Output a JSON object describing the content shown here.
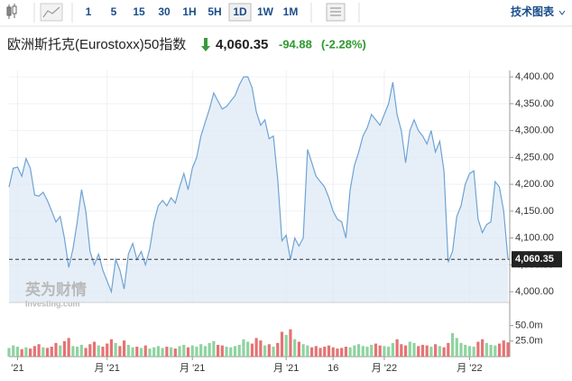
{
  "toolbar": {
    "intervals": [
      "1",
      "5",
      "15",
      "30",
      "1H",
      "5H",
      "1D",
      "1W",
      "1M"
    ],
    "active": 6,
    "tech_chart": "技术图表"
  },
  "header": {
    "name": "欧洲斯托克(Eurostoxx)50指数",
    "price": "4,060.35",
    "change": "-94.88",
    "change_pct": "(-2.28%)"
  },
  "watermark": {
    "brand": "英为财情",
    "site": "Investing.com"
  },
  "chart_data": [
    {
      "type": "area",
      "series": [
        {
          "color": "#6fa3d4",
          "values": [
            4195,
            4230,
            4232,
            4215,
            4248,
            4230,
            4180,
            4178,
            4185,
            4170,
            4150,
            4130,
            4140,
            4100,
            4045,
            4080,
            4130,
            4190,
            4150,
            4075,
            4050,
            4070,
            4040,
            4020,
            4000,
            4060,
            4040,
            4005,
            4070,
            4090,
            4060,
            4075,
            4050,
            4080,
            4130,
            4160,
            4170,
            4160,
            4175,
            4165,
            4195,
            4220,
            4190,
            4230,
            4250,
            4290,
            4315,
            4340,
            4370,
            4355,
            4340,
            4345,
            4355,
            4365,
            4385,
            4400,
            4400,
            4380,
            4335,
            4310,
            4320,
            4285,
            4290,
            4210,
            4095,
            4105,
            4060,
            4100,
            4085,
            4100,
            4265,
            4240,
            4215,
            4205,
            4195,
            4175,
            4150,
            4135,
            4130,
            4100,
            4190,
            4235,
            4260,
            4290,
            4305,
            4330,
            4320,
            4310,
            4330,
            4350,
            4390,
            4330,
            4300,
            4240,
            4300,
            4320,
            4300,
            4290,
            4275,
            4300,
            4260,
            4280,
            4225,
            4055,
            4075,
            4140,
            4160,
            4200,
            4220,
            4225,
            4135,
            4110,
            4125,
            4130,
            4205,
            4195,
            4150,
            4060.35
          ]
        }
      ],
      "last_price": {
        "value": 4060.35,
        "label": "4,060.35"
      },
      "xlim": [
        0,
        117
      ],
      "xticks": [
        {
          "value": 2,
          "label": "'21"
        },
        {
          "value": 23,
          "label": "月 '21"
        },
        {
          "value": 43,
          "label": "月 '21"
        },
        {
          "value": 65,
          "label": "月 '21"
        },
        {
          "value": 76,
          "label": "16"
        },
        {
          "value": 88,
          "label": "月 '22"
        },
        {
          "value": 108,
          "label": "月 '22"
        }
      ],
      "ylim": [
        3980,
        4412
      ],
      "yticks": [
        {
          "value": 4000,
          "label": "4,000.00"
        },
        {
          "value": 4050,
          "label": "4,050.00"
        },
        {
          "value": 4100,
          "label": "4,100.00"
        },
        {
          "value": 4150,
          "label": "4,150.00"
        },
        {
          "value": 4200,
          "label": "4,200.00"
        },
        {
          "value": 4250,
          "label": "4,250.00"
        },
        {
          "value": 4300,
          "label": "4,300.00"
        },
        {
          "value": 4350,
          "label": "4,350.00"
        },
        {
          "value": 4400,
          "label": "4,400.00"
        }
      ]
    },
    {
      "type": "bar",
      "up_color": "#8fd3a0",
      "down_color": "#e57373",
      "values": [
        14,
        18,
        16,
        12,
        15,
        13,
        17,
        20,
        15,
        14,
        16,
        22,
        18,
        25,
        30,
        17,
        16,
        19,
        14,
        20,
        24,
        18,
        16,
        21,
        28,
        22,
        17,
        26,
        19,
        15,
        16,
        14,
        18,
        13,
        15,
        17,
        14,
        16,
        15,
        13,
        17,
        19,
        15,
        18,
        16,
        20,
        17,
        22,
        25,
        19,
        18,
        16,
        15,
        17,
        19,
        28,
        24,
        21,
        30,
        26,
        18,
        20,
        16,
        22,
        40,
        35,
        44,
        28,
        24,
        20,
        18,
        15,
        17,
        14,
        16,
        18,
        15,
        13,
        14,
        16,
        15,
        18,
        20,
        17,
        16,
        19,
        21,
        18,
        17,
        16,
        22,
        28,
        20,
        18,
        24,
        22,
        17,
        19,
        18,
        16,
        20,
        17,
        15,
        22,
        38,
        30,
        22,
        19,
        17,
        16,
        24,
        28,
        22,
        19,
        18,
        21,
        26,
        23
      ],
      "ylim": [
        0,
        80
      ],
      "yticks": [
        {
          "value": 25,
          "label": "25.0m"
        },
        {
          "value": 50,
          "label": "50.0m"
        }
      ]
    }
  ]
}
